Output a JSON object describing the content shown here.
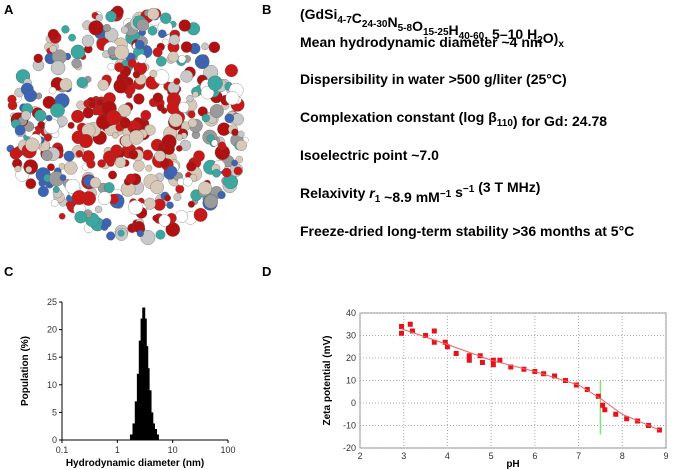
{
  "panel_labels": [
    "A",
    "B",
    "C",
    "D"
  ],
  "panel_b": {
    "lines": [
      [
        "(GdSi",
        {
          "sub": "4-7"
        },
        "C",
        {
          "sub": "24-30"
        },
        "N",
        {
          "sub": "5-8"
        },
        "O",
        {
          "sub": "15-25"
        },
        "H",
        {
          "sub": "40-60"
        },
        ", 5–10 H",
        {
          "sub": "2"
        },
        "O)",
        {
          "sub": "x"
        }
      ],
      [
        "Mean hydrodynamic diameter ~4 nm"
      ],
      [
        "Dispersibility in water >500 g/liter (25°C)"
      ],
      [
        "Complexation constant (log β",
        {
          "sub": "110"
        },
        ") for Gd: 24.78"
      ],
      [
        "Isoelectric point ~7.0"
      ],
      [
        "Relaxivity ",
        {
          "i": "r"
        },
        {
          "sub": "1"
        },
        " ~8.9 mM",
        {
          "sup": "−1"
        },
        " s",
        {
          "sup": "−1"
        },
        " (3 T MHz)"
      ],
      [
        "Freeze-dried long-term stability >36 months at 5°C"
      ]
    ]
  },
  "chart_data": [
    {
      "type": "bar",
      "xscale": "log",
      "x": [
        1.8,
        2.0,
        2.2,
        2.4,
        2.6,
        2.8,
        3.0,
        3.2,
        3.4,
        3.6,
        3.9,
        4.2,
        4.5,
        4.9,
        5.3
      ],
      "values": [
        1,
        3,
        7,
        12,
        18,
        22,
        24,
        22,
        17,
        13,
        9,
        5,
        3,
        2,
        1
      ],
      "color": "#000000",
      "xlim": [
        0.1,
        100
      ],
      "xticks": [
        0.1,
        1,
        10,
        100
      ],
      "ylim": [
        0,
        25
      ],
      "yticks": [
        0,
        5,
        10,
        15,
        20,
        25
      ],
      "xlabel": "Hydrodynamic diameter (nm)",
      "ylabel": "Population (%)"
    },
    {
      "type": "scatter",
      "grid": true,
      "xlabel": "pH",
      "ylabel": "Zeta potential (mV)",
      "xlim": [
        2,
        9
      ],
      "xticks": [
        2,
        3,
        4,
        5,
        6,
        7,
        8,
        9
      ],
      "ylim": [
        -20,
        40
      ],
      "yticks": [
        -20,
        -10,
        0,
        10,
        20,
        30,
        40
      ],
      "series": [
        {
          "mode": "markers",
          "color": "#e8101a",
          "x": [
            2.95,
            2.95,
            3.15,
            3.2,
            3.5,
            3.7,
            3.7,
            3.95,
            4.0,
            4.2,
            4.5,
            4.5,
            4.75,
            4.8,
            5.05,
            5.05,
            5.2,
            5.45,
            5.75,
            6.0,
            6.2,
            6.45,
            6.7,
            6.95,
            7.2,
            7.45,
            7.55,
            7.6,
            7.85,
            8.1,
            8.35,
            8.6,
            8.85
          ],
          "values": [
            34,
            31,
            35,
            32,
            30,
            32,
            27,
            27,
            25,
            22,
            21,
            19,
            21,
            18,
            19,
            17,
            19,
            16,
            15,
            14,
            13,
            12,
            10,
            8,
            6,
            3,
            -1,
            -3,
            -5,
            -7,
            -8,
            -10,
            -12
          ]
        },
        {
          "mode": "line",
          "color": "#f06060",
          "x": [
            2.95,
            4,
            5,
            6,
            7,
            7.5,
            8,
            8.85
          ],
          "values": [
            33,
            26,
            19,
            14,
            8,
            2,
            -5,
            -12
          ]
        }
      ],
      "vline": {
        "x": 7.5,
        "y": [
          -14,
          10
        ],
        "color": "#7fe07f"
      }
    }
  ]
}
